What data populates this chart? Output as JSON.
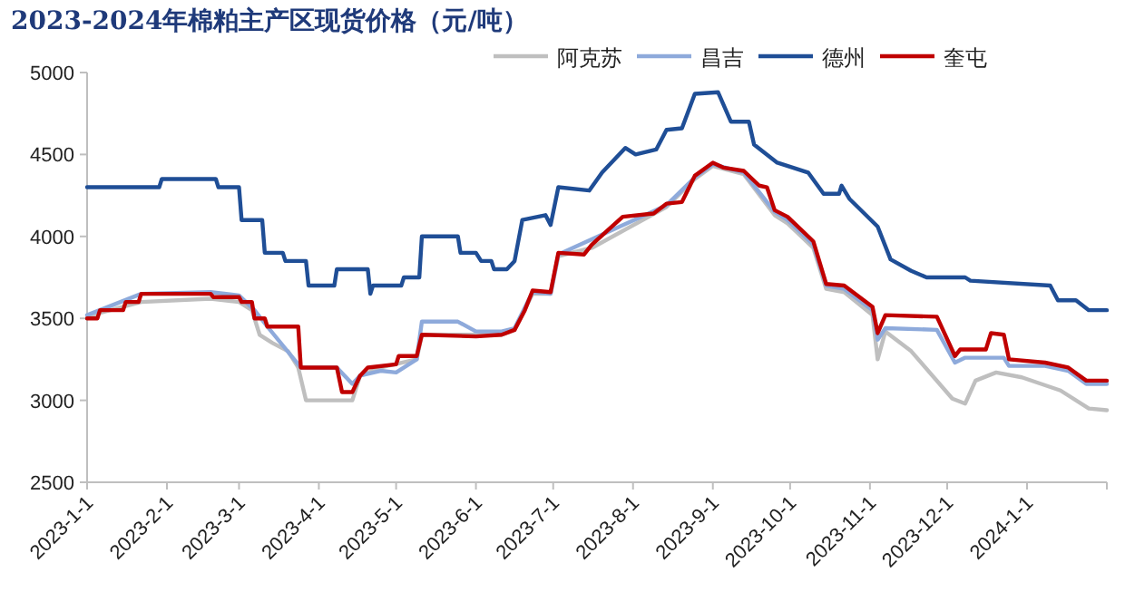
{
  "chart_data": {
    "type": "line",
    "title": "2023-2024年棉粕主产区现货价格（元/吨）",
    "legend": "top right",
    "grid": false,
    "marker": "none",
    "line_style": "solid",
    "xlim": [
      "2023-01-01",
      "2024-02-01"
    ],
    "xticks": [
      {
        "value": "2023-01-01",
        "label": "2023-1-1"
      },
      {
        "value": "2023-02-01",
        "label": "2023-2-1"
      },
      {
        "value": "2023-03-01",
        "label": "2023-3-1"
      },
      {
        "value": "2023-04-01",
        "label": "2023-4-1"
      },
      {
        "value": "2023-05-01",
        "label": "2023-5-1"
      },
      {
        "value": "2023-06-01",
        "label": "2023-6-1"
      },
      {
        "value": "2023-07-01",
        "label": "2023-7-1"
      },
      {
        "value": "2023-08-01",
        "label": "2023-8-1"
      },
      {
        "value": "2023-09-01",
        "label": "2023-9-1"
      },
      {
        "value": "2023-10-01",
        "label": "2023-10-1"
      },
      {
        "value": "2023-11-01",
        "label": "2023-11-1"
      },
      {
        "value": "2023-12-01",
        "label": "2023-12-1"
      },
      {
        "value": "2024-01-01",
        "label": "2024-1-1"
      },
      {
        "value": "2024-02-01",
        "label": null
      }
    ],
    "ylim": [
      2500,
      5000
    ],
    "yticks": [
      2500,
      3000,
      3500,
      4000,
      4500,
      5000
    ],
    "series": [
      {
        "name": "阿克苏",
        "color": "#bfbfbf",
        "x": [
          "2023-01-01",
          "2023-01-05",
          "2023-01-22",
          "2023-02-18",
          "2023-03-01",
          "2023-03-06",
          "2023-03-09",
          "2023-03-14",
          "2023-03-20",
          "2023-03-24",
          "2023-03-27",
          "2023-04-14",
          "2023-04-17",
          "2023-04-25",
          "2023-05-09",
          "2023-05-11",
          "2023-06-11",
          "2023-06-16",
          "2023-06-23",
          "2023-06-30",
          "2023-07-03",
          "2023-07-16",
          "2023-08-14",
          "2023-08-25",
          "2023-09-01",
          "2023-09-13",
          "2023-09-25",
          "2023-09-30",
          "2023-10-10",
          "2023-10-15",
          "2023-10-22",
          "2023-11-02",
          "2023-11-04",
          "2023-11-07",
          "2023-11-17",
          "2023-12-03",
          "2023-12-08",
          "2023-12-12",
          "2023-12-20",
          "2023-12-30",
          "2024-01-14",
          "2024-01-25",
          "2024-02-01"
        ],
        "values": [
          3500,
          3530,
          3600,
          3620,
          3600,
          3550,
          3400,
          3350,
          3300,
          3200,
          3000,
          3000,
          3150,
          3200,
          3250,
          3400,
          3400,
          3430,
          3650,
          3650,
          3880,
          3930,
          4180,
          4350,
          4430,
          4380,
          4130,
          4080,
          3930,
          3680,
          3660,
          3520,
          3250,
          3420,
          3300,
          3010,
          2980,
          3120,
          3170,
          3140,
          3060,
          2950,
          2940
        ]
      },
      {
        "name": "昌吉",
        "color": "#8eaadb",
        "x": [
          "2023-01-01",
          "2023-01-22",
          "2023-02-18",
          "2023-03-01",
          "2023-03-07",
          "2023-03-12",
          "2023-03-25",
          "2023-04-08",
          "2023-04-14",
          "2023-04-17",
          "2023-04-25",
          "2023-05-01",
          "2023-05-09",
          "2023-05-11",
          "2023-05-25",
          "2023-06-01",
          "2023-06-11",
          "2023-06-16",
          "2023-06-23",
          "2023-06-30",
          "2023-07-03",
          "2023-08-14",
          "2023-08-25",
          "2023-09-01",
          "2023-09-13",
          "2023-09-25",
          "2023-09-30",
          "2023-10-10",
          "2023-10-15",
          "2023-10-22",
          "2023-11-02",
          "2023-11-04",
          "2023-11-07",
          "2023-11-27",
          "2023-12-04",
          "2023-12-08",
          "2023-12-23",
          "2023-12-25",
          "2024-01-08",
          "2024-01-17",
          "2024-01-24",
          "2024-02-01"
        ],
        "values": [
          3520,
          3650,
          3660,
          3640,
          3550,
          3450,
          3200,
          3200,
          3100,
          3150,
          3180,
          3170,
          3250,
          3480,
          3480,
          3420,
          3420,
          3440,
          3660,
          3650,
          3890,
          4190,
          4360,
          4440,
          4390,
          4150,
          4100,
          3950,
          3700,
          3680,
          3550,
          3370,
          3440,
          3430,
          3230,
          3260,
          3260,
          3210,
          3210,
          3180,
          3100,
          3100
        ]
      },
      {
        "name": "德州",
        "color": "#1f4e96",
        "x": [
          "2023-01-01",
          "2023-01-29",
          "2023-01-30",
          "2023-02-20",
          "2023-02-21",
          "2023-03-01",
          "2023-03-02",
          "2023-03-10",
          "2023-03-11",
          "2023-03-18",
          "2023-03-19",
          "2023-03-27",
          "2023-03-28",
          "2023-04-07",
          "2023-04-08",
          "2023-04-20",
          "2023-04-21",
          "2023-04-22",
          "2023-05-03",
          "2023-05-04",
          "2023-05-10",
          "2023-05-11",
          "2023-05-25",
          "2023-05-26",
          "2023-06-01",
          "2023-06-03",
          "2023-06-07",
          "2023-06-08",
          "2023-06-13",
          "2023-06-16",
          "2023-06-19",
          "2023-06-28",
          "2023-06-30",
          "2023-07-03",
          "2023-07-15",
          "2023-07-20",
          "2023-07-29",
          "2023-08-02",
          "2023-08-10",
          "2023-08-14",
          "2023-08-20",
          "2023-08-25",
          "2023-09-03",
          "2023-09-08",
          "2023-09-15",
          "2023-09-17",
          "2023-09-26",
          "2023-10-08",
          "2023-10-14",
          "2023-10-20",
          "2023-10-21",
          "2023-10-24",
          "2023-11-04",
          "2023-11-09",
          "2023-11-17",
          "2023-11-23",
          "2023-12-08",
          "2023-12-10",
          "2024-01-10",
          "2024-01-13",
          "2024-01-20",
          "2024-01-25",
          "2024-02-01"
        ],
        "values": [
          4300,
          4300,
          4350,
          4350,
          4300,
          4300,
          4100,
          4100,
          3900,
          3900,
          3850,
          3850,
          3700,
          3700,
          3800,
          3800,
          3650,
          3700,
          3700,
          3750,
          3750,
          4000,
          4000,
          3900,
          3900,
          3850,
          3850,
          3800,
          3800,
          3850,
          4100,
          4130,
          4070,
          4300,
          4280,
          4390,
          4540,
          4500,
          4530,
          4650,
          4660,
          4870,
          4880,
          4700,
          4700,
          4560,
          4450,
          4390,
          4260,
          4260,
          4310,
          4230,
          4060,
          3860,
          3790,
          3750,
          3750,
          3730,
          3700,
          3610,
          3610,
          3550,
          3550
        ]
      },
      {
        "name": "奎屯",
        "color": "#c00000",
        "x": [
          "2023-01-01",
          "2023-01-05",
          "2023-01-06",
          "2023-01-15",
          "2023-01-16",
          "2023-01-21",
          "2023-01-22",
          "2023-02-18",
          "2023-02-19",
          "2023-03-01",
          "2023-03-02",
          "2023-03-06",
          "2023-03-07",
          "2023-03-11",
          "2023-03-12",
          "2023-03-24",
          "2023-03-25",
          "2023-04-08",
          "2023-04-10",
          "2023-04-14",
          "2023-04-17",
          "2023-04-20",
          "2023-05-01",
          "2023-05-02",
          "2023-05-09",
          "2023-05-11",
          "2023-06-01",
          "2023-06-11",
          "2023-06-16",
          "2023-06-20",
          "2023-06-23",
          "2023-06-30",
          "2023-07-03",
          "2023-07-13",
          "2023-07-16",
          "2023-07-28",
          "2023-08-09",
          "2023-08-14",
          "2023-08-20",
          "2023-08-25",
          "2023-09-01",
          "2023-09-05",
          "2023-09-13",
          "2023-09-19",
          "2023-09-22",
          "2023-09-25",
          "2023-09-30",
          "2023-10-10",
          "2023-10-15",
          "2023-10-22",
          "2023-11-02",
          "2023-11-04",
          "2023-11-07",
          "2023-11-27",
          "2023-12-04",
          "2023-12-06",
          "2023-12-16",
          "2023-12-18",
          "2023-12-23",
          "2023-12-25",
          "2024-01-08",
          "2024-01-17",
          "2024-01-24",
          "2024-02-01"
        ],
        "values": [
          3500,
          3500,
          3550,
          3550,
          3600,
          3600,
          3650,
          3650,
          3630,
          3630,
          3600,
          3600,
          3500,
          3500,
          3450,
          3450,
          3200,
          3200,
          3050,
          3050,
          3150,
          3200,
          3220,
          3270,
          3270,
          3400,
          3390,
          3400,
          3430,
          3550,
          3670,
          3660,
          3900,
          3890,
          3950,
          4120,
          4140,
          4200,
          4210,
          4370,
          4450,
          4420,
          4400,
          4310,
          4300,
          4160,
          4120,
          3970,
          3710,
          3700,
          3570,
          3410,
          3520,
          3510,
          3270,
          3310,
          3310,
          3410,
          3400,
          3250,
          3230,
          3200,
          3120,
          3120
        ]
      }
    ]
  }
}
